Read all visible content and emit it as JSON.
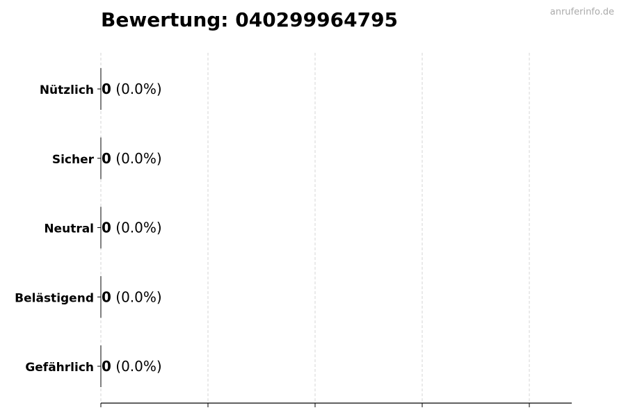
{
  "chart_data": {
    "type": "bar",
    "orientation": "horizontal",
    "title": "Bewertung: 040299964795",
    "categories": [
      "Nützlich",
      "Sicher",
      "Neutral",
      "Belästigend",
      "Gefährlich"
    ],
    "values": [
      0,
      0,
      0,
      0,
      0
    ],
    "value_labels": [
      "0",
      "0",
      "0",
      "0",
      "0"
    ],
    "percent_labels": [
      "(0.0%)",
      "(0.0%)",
      "(0.0%)",
      "(0.0%)",
      "(0.0%)"
    ],
    "xlabel": "",
    "ylabel": "",
    "x_tick_labels_shown": false,
    "grid": "vertical dashed",
    "colors": {
      "bar": "#000000",
      "grid": "#cccccc",
      "axis": "#000000"
    }
  },
  "watermark": "anruferinfo.de"
}
